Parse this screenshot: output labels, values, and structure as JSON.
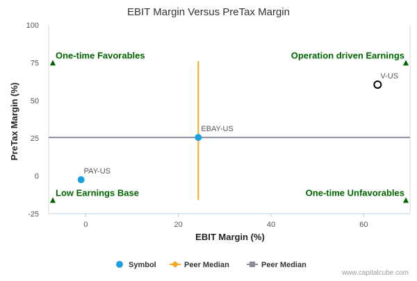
{
  "chart_data": {
    "type": "scatter",
    "title": "EBIT Margin Versus PreTax Margin",
    "xlabel": "EBIT Margin (%)",
    "ylabel": "PreTax Margin (%)",
    "xlim": [
      -8,
      70
    ],
    "ylim": [
      -25,
      100
    ],
    "xticks": [
      0,
      20,
      40,
      60
    ],
    "yticks": [
      -25,
      0,
      25,
      50,
      75,
      100
    ],
    "grid": false,
    "points": [
      {
        "label": "PAY-US",
        "x": -1.0,
        "y": -2.5,
        "style": "filled",
        "color": "#1ba1e2"
      },
      {
        "label": "EBAY-US",
        "x": 24.3,
        "y": 25.5,
        "style": "filled",
        "color": "#1ba1e2"
      },
      {
        "label": "V-US",
        "x": 63.0,
        "y": 60.5,
        "style": "hollow",
        "color": "#000000"
      }
    ],
    "peer_median": {
      "x": 24.3,
      "y": 25.5,
      "vline_color": "#f5a623",
      "hline_color": "#8c8c9c",
      "vline_y_range": [
        -16,
        76
      ],
      "hline_x_range": [
        -8,
        70
      ]
    },
    "quadrant_labels": [
      {
        "text": "One-time Favorables",
        "corner": "top-left"
      },
      {
        "text": "Operation driven Earnings",
        "corner": "top-right"
      },
      {
        "text": "Low Earnings Base",
        "corner": "bottom-left"
      },
      {
        "text": "One-time Unfavorables",
        "corner": "bottom-right"
      }
    ],
    "quadrant_label_color": "#006400",
    "legend": {
      "placement": "bottom",
      "items": [
        {
          "label": "Symbol",
          "kind": "dot",
          "color": "#1ba1e2"
        },
        {
          "label": "Peer Median",
          "kind": "diamond-line",
          "color": "#f5a623"
        },
        {
          "label": "Peer Median",
          "kind": "square-line",
          "color": "#8c8c9c"
        }
      ]
    },
    "credit": "www.capitalcube.com"
  }
}
